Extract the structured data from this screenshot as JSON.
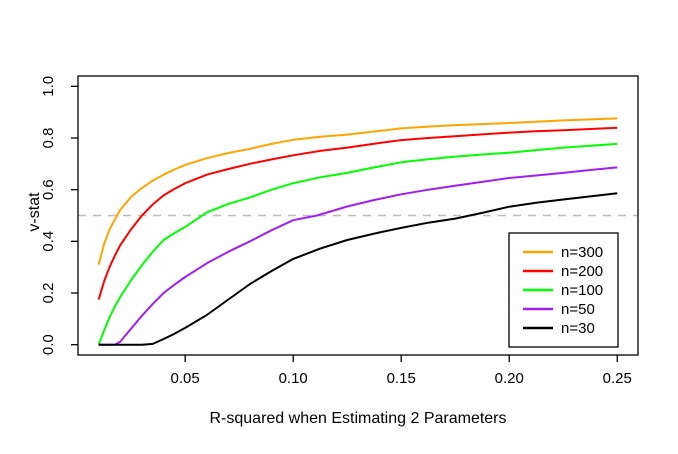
{
  "figure": {
    "background": "#FFFFFF",
    "axis_color": "#000000"
  },
  "chart_data": {
    "type": "line",
    "title": "",
    "xlabel": "R-squared when Estimating 2 Parameters",
    "ylabel": "v-stat",
    "xlim": [
      0.01,
      0.25
    ],
    "ylim": [
      0.0,
      1.0
    ],
    "grid": false,
    "x_ticks": [
      0.05,
      0.1,
      0.15,
      0.2,
      0.25
    ],
    "x_tick_labels": [
      "0.05",
      "0.10",
      "0.15",
      "0.20",
      "0.25"
    ],
    "y_ticks": [
      0.0,
      0.2,
      0.4,
      0.6,
      0.8,
      1.0
    ],
    "y_tick_labels": [
      "0.0",
      "0.2",
      "0.4",
      "0.6",
      "0.8",
      "1.0"
    ],
    "reference_line": {
      "y": 0.5,
      "style": "dashed",
      "color": "#BEBEBE"
    },
    "legend": {
      "position": "bottom-right",
      "border_color": "#000000",
      "entries": [
        {
          "label": "n=300",
          "color": "#FFA500"
        },
        {
          "label": "n=200",
          "color": "#FF0000"
        },
        {
          "label": "n=100",
          "color": "#00FF00"
        },
        {
          "label": "n=50",
          "color": "#A020F0"
        },
        {
          "label": "n=30",
          "color": "#000000"
        }
      ]
    },
    "series": [
      {
        "name": "n=300",
        "color": "#FFA500",
        "points": [
          [
            0.01,
            0.31
          ],
          [
            0.0125,
            0.39
          ],
          [
            0.015,
            0.445
          ],
          [
            0.0175,
            0.485
          ],
          [
            0.02,
            0.522
          ],
          [
            0.025,
            0.572
          ],
          [
            0.03,
            0.607
          ],
          [
            0.035,
            0.635
          ],
          [
            0.04,
            0.658
          ],
          [
            0.045,
            0.678
          ],
          [
            0.05,
            0.696
          ],
          [
            0.06,
            0.722
          ],
          [
            0.07,
            0.742
          ],
          [
            0.08,
            0.758
          ],
          [
            0.09,
            0.777
          ],
          [
            0.1,
            0.793
          ],
          [
            0.1125,
            0.805
          ],
          [
            0.125,
            0.813
          ],
          [
            0.1375,
            0.825
          ],
          [
            0.15,
            0.837
          ],
          [
            0.1625,
            0.844
          ],
          [
            0.175,
            0.85
          ],
          [
            0.1875,
            0.854
          ],
          [
            0.2,
            0.858
          ],
          [
            0.2125,
            0.863
          ],
          [
            0.225,
            0.868
          ],
          [
            0.2375,
            0.872
          ],
          [
            0.25,
            0.876
          ]
        ]
      },
      {
        "name": "n=200",
        "color": "#FF0000",
        "points": [
          [
            0.01,
            0.175
          ],
          [
            0.0125,
            0.245
          ],
          [
            0.015,
            0.3
          ],
          [
            0.0175,
            0.345
          ],
          [
            0.02,
            0.385
          ],
          [
            0.025,
            0.447
          ],
          [
            0.03,
            0.5
          ],
          [
            0.035,
            0.543
          ],
          [
            0.04,
            0.578
          ],
          [
            0.045,
            0.603
          ],
          [
            0.05,
            0.625
          ],
          [
            0.06,
            0.658
          ],
          [
            0.07,
            0.68
          ],
          [
            0.08,
            0.7
          ],
          [
            0.09,
            0.717
          ],
          [
            0.1,
            0.733
          ],
          [
            0.1125,
            0.75
          ],
          [
            0.125,
            0.763
          ],
          [
            0.1375,
            0.778
          ],
          [
            0.15,
            0.792
          ],
          [
            0.1625,
            0.8
          ],
          [
            0.175,
            0.807
          ],
          [
            0.1875,
            0.814
          ],
          [
            0.2,
            0.821
          ],
          [
            0.2125,
            0.826
          ],
          [
            0.225,
            0.83
          ],
          [
            0.2375,
            0.835
          ],
          [
            0.25,
            0.84
          ]
        ]
      },
      {
        "name": "n=100",
        "color": "#00FF00",
        "points": [
          [
            0.01,
            0.0
          ],
          [
            0.0125,
            0.055
          ],
          [
            0.015,
            0.105
          ],
          [
            0.0175,
            0.148
          ],
          [
            0.02,
            0.185
          ],
          [
            0.025,
            0.25
          ],
          [
            0.03,
            0.308
          ],
          [
            0.035,
            0.36
          ],
          [
            0.04,
            0.405
          ],
          [
            0.045,
            0.432
          ],
          [
            0.05,
            0.456
          ],
          [
            0.0577,
            0.499
          ],
          [
            0.06,
            0.512
          ],
          [
            0.07,
            0.545
          ],
          [
            0.08,
            0.57
          ],
          [
            0.09,
            0.6
          ],
          [
            0.1,
            0.625
          ],
          [
            0.1125,
            0.648
          ],
          [
            0.125,
            0.665
          ],
          [
            0.1375,
            0.686
          ],
          [
            0.15,
            0.706
          ],
          [
            0.1625,
            0.718
          ],
          [
            0.175,
            0.728
          ],
          [
            0.1875,
            0.736
          ],
          [
            0.2,
            0.743
          ],
          [
            0.2125,
            0.753
          ],
          [
            0.225,
            0.763
          ],
          [
            0.2375,
            0.77
          ],
          [
            0.25,
            0.777
          ]
        ]
      },
      {
        "name": "n=50",
        "color": "#A020F0",
        "points": [
          [
            0.01,
            0.0
          ],
          [
            0.0175,
            0.0
          ],
          [
            0.02,
            0.012
          ],
          [
            0.025,
            0.062
          ],
          [
            0.03,
            0.112
          ],
          [
            0.035,
            0.158
          ],
          [
            0.04,
            0.2
          ],
          [
            0.045,
            0.232
          ],
          [
            0.05,
            0.262
          ],
          [
            0.06,
            0.315
          ],
          [
            0.07,
            0.36
          ],
          [
            0.08,
            0.4
          ],
          [
            0.09,
            0.443
          ],
          [
            0.1,
            0.482
          ],
          [
            0.111,
            0.5
          ],
          [
            0.125,
            0.535
          ],
          [
            0.1375,
            0.56
          ],
          [
            0.15,
            0.582
          ],
          [
            0.1625,
            0.6
          ],
          [
            0.175,
            0.615
          ],
          [
            0.1875,
            0.63
          ],
          [
            0.2,
            0.645
          ],
          [
            0.2125,
            0.655
          ],
          [
            0.225,
            0.665
          ],
          [
            0.2375,
            0.676
          ],
          [
            0.25,
            0.686
          ]
        ]
      },
      {
        "name": "n=30",
        "color": "#000000",
        "points": [
          [
            0.01,
            0.0
          ],
          [
            0.03,
            0.0
          ],
          [
            0.035,
            0.003
          ],
          [
            0.04,
            0.022
          ],
          [
            0.045,
            0.042
          ],
          [
            0.05,
            0.065
          ],
          [
            0.06,
            0.115
          ],
          [
            0.07,
            0.175
          ],
          [
            0.08,
            0.235
          ],
          [
            0.09,
            0.285
          ],
          [
            0.1,
            0.332
          ],
          [
            0.1125,
            0.372
          ],
          [
            0.125,
            0.405
          ],
          [
            0.1375,
            0.43
          ],
          [
            0.15,
            0.452
          ],
          [
            0.1625,
            0.472
          ],
          [
            0.175,
            0.488
          ],
          [
            0.1875,
            0.51
          ],
          [
            0.2,
            0.534
          ],
          [
            0.2125,
            0.549
          ],
          [
            0.225,
            0.562
          ],
          [
            0.2375,
            0.574
          ],
          [
            0.25,
            0.586
          ]
        ]
      }
    ]
  }
}
